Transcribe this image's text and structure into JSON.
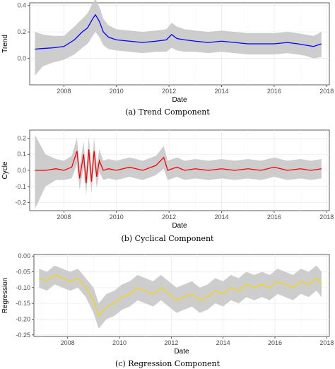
{
  "chart_data": [
    {
      "type": "line",
      "title": "",
      "xlabel": "Date",
      "ylabel": "Trend",
      "xlim": [
        2006.7,
        2018.1
      ],
      "ylim": [
        -0.2,
        0.42
      ],
      "x_ticks": [
        "2008",
        "2010",
        "2012",
        "2014",
        "2016",
        "2018"
      ],
      "y_ticks": [
        "0.0",
        "0.2",
        "0.4"
      ],
      "series": [
        {
          "color": "#0000ff",
          "band_color": "#c8c8c8",
          "x": [
            2006.9,
            2007.2,
            2007.6,
            2008.0,
            2008.4,
            2008.7,
            2008.9,
            2009.1,
            2009.2,
            2009.35,
            2009.5,
            2009.7,
            2010.0,
            2010.5,
            2011.0,
            2011.5,
            2011.9,
            2012.1,
            2012.3,
            2012.6,
            2013.0,
            2013.5,
            2014.0,
            2014.5,
            2015.0,
            2015.5,
            2016.0,
            2016.5,
            2016.9,
            2017.2,
            2017.5,
            2017.8
          ],
          "y": [
            0.07,
            0.075,
            0.08,
            0.09,
            0.14,
            0.2,
            0.23,
            0.3,
            0.33,
            0.28,
            0.2,
            0.16,
            0.14,
            0.13,
            0.12,
            0.13,
            0.14,
            0.18,
            0.15,
            0.14,
            0.13,
            0.12,
            0.13,
            0.12,
            0.11,
            0.11,
            0.11,
            0.12,
            0.11,
            0.1,
            0.09,
            0.11
          ],
          "lower": [
            -0.13,
            -0.06,
            -0.03,
            -0.01,
            0.03,
            0.08,
            0.11,
            0.17,
            0.2,
            0.16,
            0.1,
            0.07,
            0.06,
            0.05,
            0.04,
            0.05,
            0.05,
            0.08,
            0.06,
            0.05,
            0.05,
            0.04,
            0.05,
            0.04,
            0.03,
            0.03,
            0.03,
            0.04,
            0.03,
            0.02,
            0.0,
            0.01
          ],
          "upper": [
            0.2,
            0.18,
            0.17,
            0.17,
            0.24,
            0.3,
            0.34,
            0.42,
            0.45,
            0.39,
            0.3,
            0.25,
            0.22,
            0.21,
            0.2,
            0.21,
            0.22,
            0.27,
            0.24,
            0.22,
            0.21,
            0.2,
            0.21,
            0.2,
            0.19,
            0.19,
            0.19,
            0.2,
            0.19,
            0.18,
            0.17,
            0.2
          ]
        }
      ]
    },
    {
      "type": "line",
      "title": "",
      "xlabel": "Date",
      "ylabel": "Cycle",
      "xlim": [
        2006.7,
        2018.1
      ],
      "ylim": [
        -0.25,
        0.25
      ],
      "x_ticks": [
        "2008",
        "2010",
        "2012",
        "2014",
        "2016",
        "2018"
      ],
      "y_ticks": [
        "-0.2",
        "-0.1",
        "0.0",
        "0.1",
        "0.2"
      ],
      "series": [
        {
          "color": "#ff0000",
          "band_color": "#c8c8c8",
          "x": [
            2006.9,
            2007.3,
            2007.7,
            2008.0,
            2008.3,
            2008.5,
            2008.6,
            2008.75,
            2008.85,
            2008.95,
            2009.05,
            2009.15,
            2009.25,
            2009.35,
            2009.5,
            2009.7,
            2010.0,
            2010.5,
            2011.0,
            2011.5,
            2011.8,
            2011.95,
            2012.3,
            2012.6,
            2013.0,
            2013.5,
            2014.0,
            2014.5,
            2015.0,
            2015.5,
            2016.0,
            2016.5,
            2017.0,
            2017.4,
            2017.8
          ],
          "y": [
            0.0,
            0.0,
            0.01,
            0.0,
            0.02,
            0.12,
            -0.05,
            0.1,
            -0.08,
            0.13,
            -0.07,
            0.12,
            -0.04,
            0.06,
            0.0,
            0.01,
            0.0,
            0.02,
            0.0,
            0.03,
            0.08,
            0.0,
            0.02,
            0.0,
            0.01,
            0.0,
            0.01,
            0.0,
            0.01,
            0.0,
            0.02,
            0.0,
            0.01,
            0.0,
            0.01
          ],
          "lower": [
            -0.24,
            -0.1,
            -0.06,
            -0.06,
            -0.05,
            0.04,
            -0.12,
            0.02,
            -0.15,
            0.05,
            -0.14,
            0.04,
            -0.11,
            -0.01,
            -0.06,
            -0.05,
            -0.06,
            -0.04,
            -0.06,
            -0.03,
            0.01,
            -0.06,
            -0.04,
            -0.06,
            -0.05,
            -0.06,
            -0.05,
            -0.06,
            -0.05,
            -0.06,
            -0.04,
            -0.06,
            -0.05,
            -0.06,
            -0.05
          ],
          "upper": [
            0.22,
            0.1,
            0.07,
            0.06,
            0.09,
            0.2,
            0.02,
            0.18,
            -0.01,
            0.21,
            0.0,
            0.2,
            0.03,
            0.13,
            0.06,
            0.07,
            0.06,
            0.08,
            0.06,
            0.09,
            0.15,
            0.06,
            0.08,
            0.06,
            0.07,
            0.06,
            0.07,
            0.06,
            0.07,
            0.06,
            0.08,
            0.06,
            0.07,
            0.06,
            0.07
          ]
        }
      ]
    },
    {
      "type": "line",
      "title": "",
      "xlabel": "Date",
      "ylabel": "Regression",
      "xlim": [
        2006.7,
        2018.1
      ],
      "ylim": [
        -0.255,
        0.005
      ],
      "x_ticks": [
        "2008",
        "2010",
        "2012",
        "2014",
        "2016",
        "2018"
      ],
      "y_ticks": [
        "0.00",
        "-0.05",
        "-0.10",
        "-0.15",
        "-0.20",
        "-0.25"
      ],
      "series": [
        {
          "color": "#f5d60a",
          "band_color": "#c8c8c8",
          "x": [
            2006.9,
            2007.2,
            2007.5,
            2007.8,
            2008.1,
            2008.4,
            2008.7,
            2009.0,
            2009.2,
            2009.5,
            2009.8,
            2010.1,
            2010.4,
            2010.7,
            2011.0,
            2011.3,
            2011.6,
            2011.9,
            2012.2,
            2012.5,
            2012.8,
            2013.1,
            2013.4,
            2013.7,
            2014.0,
            2014.3,
            2014.6,
            2014.9,
            2015.2,
            2015.5,
            2015.8,
            2016.1,
            2016.4,
            2016.7,
            2017.0,
            2017.3,
            2017.6,
            2017.8
          ],
          "y": [
            -0.07,
            -0.08,
            -0.06,
            -0.07,
            -0.08,
            -0.07,
            -0.1,
            -0.14,
            -0.19,
            -0.16,
            -0.15,
            -0.13,
            -0.12,
            -0.1,
            -0.11,
            -0.12,
            -0.1,
            -0.12,
            -0.14,
            -0.13,
            -0.12,
            -0.14,
            -0.13,
            -0.11,
            -0.12,
            -0.1,
            -0.11,
            -0.09,
            -0.1,
            -0.09,
            -0.1,
            -0.08,
            -0.09,
            -0.1,
            -0.08,
            -0.09,
            -0.07,
            -0.09
          ],
          "lower": [
            -0.1,
            -0.11,
            -0.09,
            -0.1,
            -0.11,
            -0.1,
            -0.13,
            -0.18,
            -0.23,
            -0.2,
            -0.19,
            -0.17,
            -0.16,
            -0.14,
            -0.15,
            -0.16,
            -0.14,
            -0.16,
            -0.18,
            -0.17,
            -0.16,
            -0.18,
            -0.17,
            -0.15,
            -0.16,
            -0.14,
            -0.15,
            -0.13,
            -0.14,
            -0.13,
            -0.14,
            -0.12,
            -0.13,
            -0.14,
            -0.12,
            -0.13,
            -0.11,
            -0.13
          ],
          "upper": [
            -0.04,
            -0.05,
            -0.03,
            -0.04,
            -0.05,
            -0.04,
            -0.07,
            -0.1,
            -0.15,
            -0.12,
            -0.11,
            -0.09,
            -0.08,
            -0.06,
            -0.07,
            -0.08,
            -0.06,
            -0.08,
            -0.1,
            -0.09,
            -0.08,
            -0.1,
            -0.09,
            -0.07,
            -0.08,
            -0.06,
            -0.07,
            -0.05,
            -0.06,
            -0.05,
            -0.06,
            -0.04,
            -0.05,
            -0.06,
            -0.04,
            -0.05,
            -0.03,
            -0.05
          ]
        }
      ]
    }
  ],
  "captions": [
    "(a) Trend Component",
    "(b) Cyclical Component",
    "(c) Regression Component"
  ]
}
